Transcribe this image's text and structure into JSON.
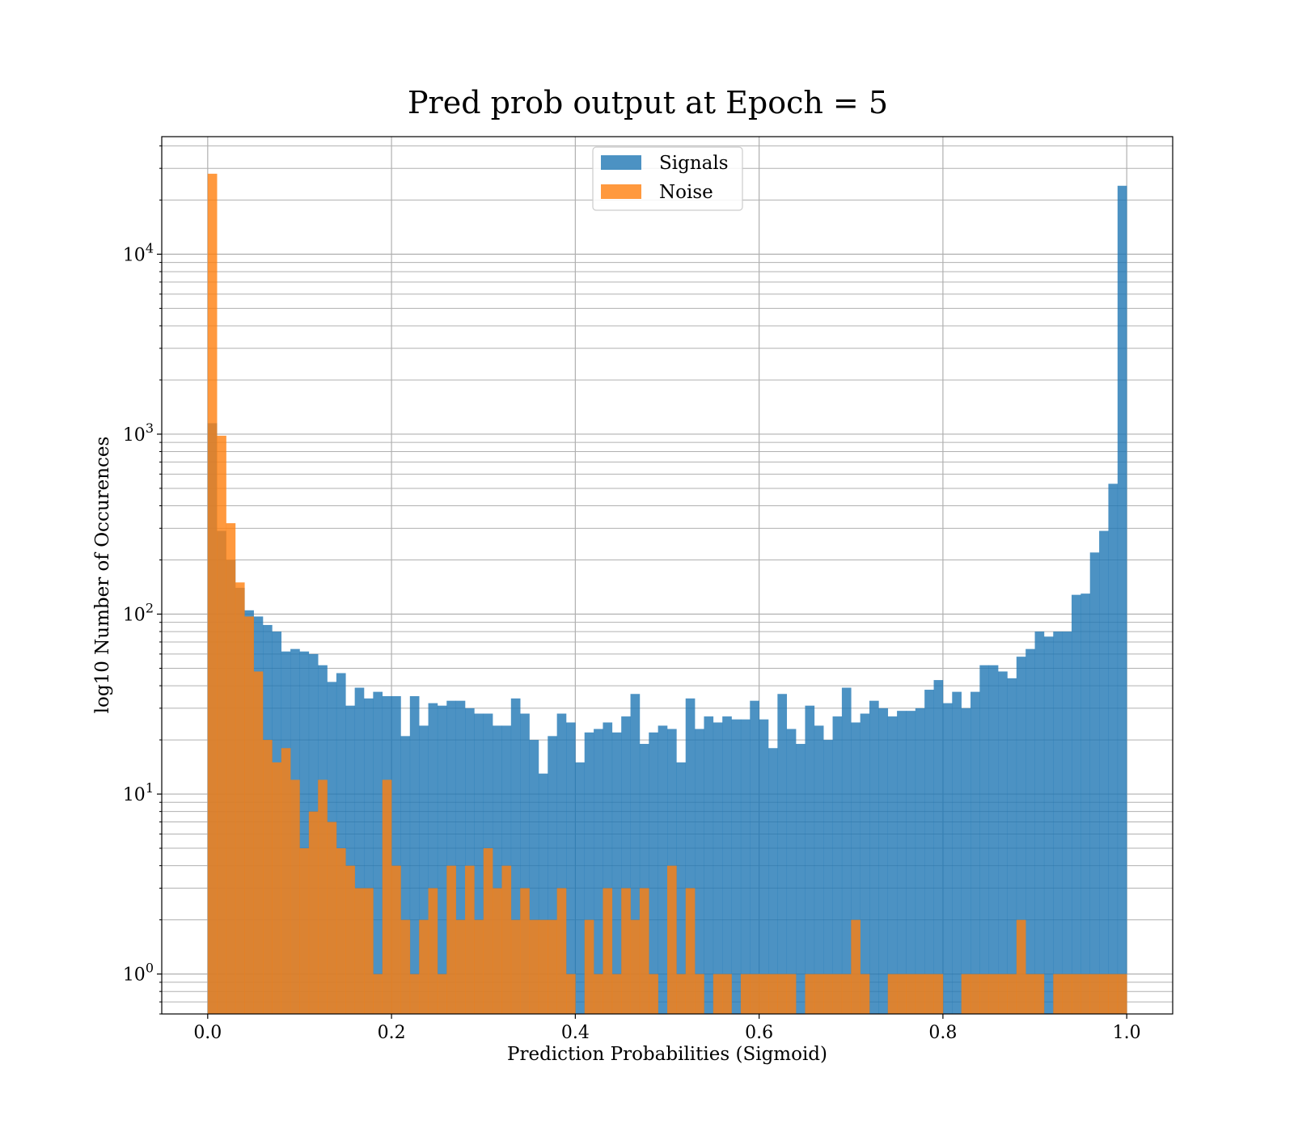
{
  "chart_data": {
    "type": "bar",
    "title": "Pred prob output at Epoch = 5",
    "xlabel": "Prediction Probabilities (Sigmoid)",
    "ylabel": "log10 Number of Occurences",
    "xlim": [
      -0.05,
      1.05
    ],
    "ylim": [
      0.6,
      45000
    ],
    "yscale": "log",
    "grid": "both",
    "legend_position": "top-center",
    "bin_start": 0.0,
    "bin_width": 0.01,
    "x_ticks": [
      "0.0",
      "0.2",
      "0.4",
      "0.6",
      "0.8",
      "1.0"
    ],
    "x_tick_values": [
      0.0,
      0.2,
      0.4,
      0.6,
      0.8,
      1.0
    ],
    "y_ticks": [
      {
        "value": 1,
        "base": "10",
        "exp": "0"
      },
      {
        "value": 10,
        "base": "10",
        "exp": "1"
      },
      {
        "value": 100,
        "base": "10",
        "exp": "2"
      },
      {
        "value": 1000,
        "base": "10",
        "exp": "3"
      },
      {
        "value": 10000,
        "base": "10",
        "exp": "4"
      }
    ],
    "series": [
      {
        "name": "Signals",
        "color": "#1f77b4",
        "opacity": 0.8,
        "values": [
          1150,
          290,
          200,
          140,
          105,
          97,
          87,
          80,
          62,
          64,
          62,
          60,
          52,
          42,
          47,
          31,
          39,
          34,
          37,
          35,
          35,
          21,
          35,
          24,
          32,
          31,
          33,
          33,
          30,
          28,
          28,
          24,
          24,
          34,
          28,
          20,
          13,
          21,
          28,
          25,
          15,
          22,
          23,
          25,
          22,
          27,
          36,
          19,
          22,
          24,
          23,
          15,
          34,
          23,
          27,
          25,
          27,
          26,
          26,
          33,
          26,
          18,
          36,
          23,
          19,
          31,
          24,
          20,
          27,
          39,
          25,
          28,
          33,
          30,
          27,
          29,
          29,
          30,
          38,
          43,
          32,
          37,
          30,
          37,
          52,
          52,
          48,
          44,
          58,
          64,
          80,
          75,
          80,
          80,
          128,
          130,
          220,
          290,
          530,
          24000
        ]
      },
      {
        "name": "Noise",
        "color": "#ff7f0e",
        "opacity": 0.8,
        "values": [
          28000,
          980,
          320,
          150,
          97,
          48,
          20,
          15,
          18,
          12,
          5,
          8,
          12,
          7,
          5,
          4,
          3,
          3,
          1,
          12,
          4,
          2,
          1,
          2,
          3,
          1,
          4,
          2,
          4,
          2,
          5,
          3,
          4,
          2,
          3,
          2,
          2,
          2,
          3,
          1,
          0,
          2,
          1,
          3,
          1,
          3,
          2,
          3,
          1,
          0,
          4,
          1,
          3,
          1,
          0,
          1,
          1,
          0,
          1,
          1,
          1,
          1,
          1,
          1,
          0,
          1,
          1,
          1,
          1,
          1,
          2,
          1,
          0,
          0,
          1,
          1,
          1,
          1,
          1,
          1,
          0,
          0,
          1,
          1,
          1,
          1,
          1,
          1,
          2,
          1,
          1,
          0,
          1,
          1,
          1,
          1,
          1,
          1,
          1,
          1
        ]
      }
    ]
  }
}
